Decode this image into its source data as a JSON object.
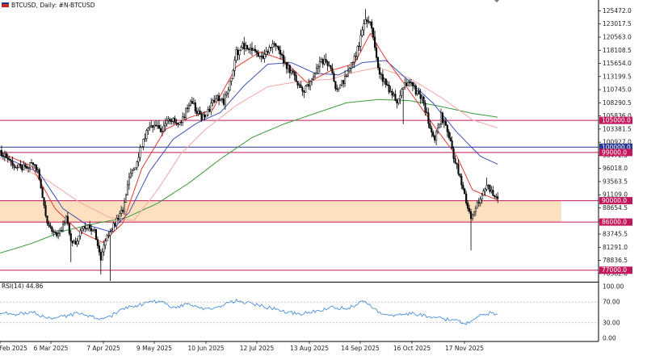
{
  "header": {
    "symbol_line": "BTCUSD, Daily:  #N-BTCUSD"
  },
  "rsi_panel": {
    "label": "RSI(14) 44.86"
  },
  "colors": {
    "bull_candle": "#000000",
    "bear_candle": "#000000",
    "ema_fast": "#e53935",
    "ema_mid": "#3f51b5",
    "ema_slow_pink": "#f4a6a6",
    "ema_long_green": "#3a9a3a",
    "level_line": "#c2185b",
    "key_level_line": "#283593",
    "zone_fill": "#fde0c0",
    "rsi_line": "#4a90d9"
  },
  "chart_data": {
    "type": "candlestick",
    "title": "BTCUSD, Daily:  #N-BTCUSD",
    "ylim": [
      75000,
      127500
    ],
    "price_axis_ticks": [
      "125472.0",
      "123017.5",
      "120563.0",
      "118108.5",
      "115654.0",
      "113199.5",
      "110745.0",
      "108290.5",
      "105836.0",
      "103381.5",
      "100927.0",
      "98472.5",
      "96018.0",
      "93563.5",
      "91109.0",
      "88654.5",
      "86200.0",
      "83745.5",
      "81291.0",
      "78836.5",
      "76382.0"
    ],
    "x_tick_labels": [
      "7 Feb 2025",
      "6 Mar 2025",
      "7 Apr 2025",
      "9 May 2025",
      "10 Jun 2025",
      "12 Jul 2025",
      "13 Aug 2025",
      "14 Sep 2025",
      "16 Oct 2025",
      "17 Nov 2025"
    ],
    "horizontal_levels": [
      {
        "label": "105000.0",
        "value": 105000
      },
      {
        "label": "100000.0",
        "value": 100000
      },
      {
        "label": "99000.0",
        "value": 99000
      },
      {
        "label": "90000.0",
        "value": 90000
      },
      {
        "label": "86000.0",
        "value": 86000
      },
      {
        "label": "77000.0",
        "value": 77000
      }
    ],
    "support_zone": {
      "from": 86000,
      "to": 90000
    },
    "close_anchors": [
      [
        0,
        99200
      ],
      [
        5,
        97800
      ],
      [
        10,
        96500
      ],
      [
        15,
        96200
      ],
      [
        20,
        97200
      ],
      [
        24,
        95800
      ],
      [
        27,
        91000
      ],
      [
        30,
        86000
      ],
      [
        33,
        84000
      ],
      [
        36,
        83500
      ],
      [
        39,
        84500
      ],
      [
        42,
        86700
      ],
      [
        45,
        82500
      ],
      [
        48,
        82200
      ],
      [
        52,
        84500
      ],
      [
        56,
        85200
      ],
      [
        60,
        84200
      ],
      [
        64,
        78800
      ],
      [
        67,
        82800
      ],
      [
        70,
        84200
      ],
      [
        74,
        86300
      ],
      [
        78,
        88200
      ],
      [
        82,
        94800
      ],
      [
        86,
        96300
      ],
      [
        90,
        100500
      ],
      [
        94,
        103500
      ],
      [
        98,
        104300
      ],
      [
        102,
        103200
      ],
      [
        106,
        104800
      ],
      [
        110,
        105500
      ],
      [
        114,
        104200
      ],
      [
        118,
        106800
      ],
      [
        122,
        108500
      ],
      [
        126,
        106200
      ],
      [
        130,
        105200
      ],
      [
        134,
        108000
      ],
      [
        138,
        109200
      ],
      [
        142,
        108600
      ],
      [
        146,
        112000
      ],
      [
        150,
        117500
      ],
      [
        154,
        119200
      ],
      [
        158,
        117800
      ],
      [
        162,
        118200
      ],
      [
        166,
        116800
      ],
      [
        170,
        118000
      ],
      [
        174,
        119800
      ],
      [
        178,
        117400
      ],
      [
        182,
        115200
      ],
      [
        186,
        113600
      ],
      [
        190,
        111200
      ],
      [
        194,
        110800
      ],
      [
        198,
        112500
      ],
      [
        202,
        115200
      ],
      [
        206,
        116300
      ],
      [
        210,
        114200
      ],
      [
        214,
        110200
      ],
      [
        218,
        112400
      ],
      [
        222,
        115400
      ],
      [
        226,
        117200
      ],
      [
        230,
        121300
      ],
      [
        232,
        124200
      ],
      [
        236,
        122200
      ],
      [
        240,
        114200
      ],
      [
        244,
        112300
      ],
      [
        248,
        110100
      ],
      [
        252,
        108500
      ],
      [
        256,
        111200
      ],
      [
        260,
        112500
      ],
      [
        264,
        110300
      ],
      [
        268,
        108800
      ],
      [
        272,
        104800
      ],
      [
        276,
        101800
      ],
      [
        280,
        105800
      ],
      [
        284,
        103300
      ],
      [
        288,
        98400
      ],
      [
        292,
        94200
      ],
      [
        296,
        89800
      ],
      [
        299,
        86900
      ],
      [
        302,
        88600
      ],
      [
        305,
        90800
      ],
      [
        309,
        92800
      ],
      [
        313,
        91200
      ],
      [
        316,
        90400
      ]
    ],
    "wick_spikes": [
      {
        "day": 45,
        "low": 78500
      },
      {
        "day": 64,
        "low": 76200
      },
      {
        "day": 70,
        "low": 74600
      },
      {
        "day": 232,
        "high": 125800
      },
      {
        "day": 256,
        "low": 104300
      },
      {
        "day": 299,
        "low": 80700
      },
      {
        "day": 309,
        "high": 94300
      }
    ],
    "ema_fast_anchors": [
      [
        0,
        99000
      ],
      [
        20,
        96500
      ],
      [
        35,
        88500
      ],
      [
        50,
        84300
      ],
      [
        65,
        82200
      ],
      [
        78,
        85800
      ],
      [
        90,
        96000
      ],
      [
        105,
        103300
      ],
      [
        120,
        105500
      ],
      [
        135,
        107000
      ],
      [
        150,
        115000
      ],
      [
        165,
        117800
      ],
      [
        180,
        116300
      ],
      [
        195,
        112000
      ],
      [
        210,
        114300
      ],
      [
        225,
        115600
      ],
      [
        235,
        121200
      ],
      [
        245,
        116500
      ],
      [
        260,
        110500
      ],
      [
        275,
        104200
      ],
      [
        290,
        98300
      ],
      [
        300,
        92000
      ],
      [
        316,
        90100
      ]
    ],
    "ema_mid_anchors": [
      [
        0,
        98500
      ],
      [
        25,
        95200
      ],
      [
        40,
        88500
      ],
      [
        55,
        85500
      ],
      [
        70,
        84200
      ],
      [
        82,
        87800
      ],
      [
        95,
        95500
      ],
      [
        110,
        101500
      ],
      [
        125,
        104500
      ],
      [
        140,
        106500
      ],
      [
        155,
        111500
      ],
      [
        170,
        115500
      ],
      [
        185,
        115800
      ],
      [
        200,
        113800
      ],
      [
        215,
        113500
      ],
      [
        230,
        115800
      ],
      [
        245,
        116200
      ],
      [
        260,
        112300
      ],
      [
        275,
        108200
      ],
      [
        290,
        102800
      ],
      [
        305,
        98300
      ],
      [
        316,
        96800
      ]
    ],
    "ema_slow_anchors": [
      [
        0,
        98000
      ],
      [
        30,
        93800
      ],
      [
        50,
        89800
      ],
      [
        70,
        86800
      ],
      [
        85,
        86300
      ],
      [
        100,
        92000
      ],
      [
        115,
        98800
      ],
      [
        130,
        103200
      ],
      [
        150,
        107800
      ],
      [
        170,
        111300
      ],
      [
        190,
        112300
      ],
      [
        210,
        112700
      ],
      [
        225,
        114000
      ],
      [
        240,
        114900
      ],
      [
        260,
        112900
      ],
      [
        280,
        109300
      ],
      [
        300,
        105100
      ],
      [
        316,
        103600
      ]
    ],
    "ema_long_anchors": [
      [
        0,
        80200
      ],
      [
        20,
        82000
      ],
      [
        40,
        84300
      ],
      [
        60,
        85700
      ],
      [
        80,
        86800
      ],
      [
        100,
        89500
      ],
      [
        120,
        93300
      ],
      [
        140,
        97800
      ],
      [
        160,
        101800
      ],
      [
        180,
        104300
      ],
      [
        200,
        106300
      ],
      [
        220,
        108300
      ],
      [
        240,
        108900
      ],
      [
        260,
        108700
      ],
      [
        280,
        107600
      ],
      [
        300,
        106300
      ],
      [
        316,
        105600
      ]
    ],
    "rsi": {
      "name": "RSI(14)",
      "current": 44.86,
      "ylim": [
        0,
        100
      ],
      "tick_labels": [
        "100.00",
        "70.00",
        "30.00",
        "0.00"
      ],
      "levels": [
        70,
        30
      ],
      "anchors": [
        [
          0,
          50
        ],
        [
          10,
          45
        ],
        [
          20,
          52
        ],
        [
          30,
          38
        ],
        [
          40,
          42
        ],
        [
          50,
          48
        ],
        [
          60,
          40
        ],
        [
          66,
          35
        ],
        [
          72,
          46
        ],
        [
          80,
          58
        ],
        [
          90,
          66
        ],
        [
          100,
          72
        ],
        [
          110,
          60
        ],
        [
          120,
          65
        ],
        [
          130,
          55
        ],
        [
          140,
          62
        ],
        [
          150,
          73
        ],
        [
          160,
          66
        ],
        [
          170,
          60
        ],
        [
          180,
          52
        ],
        [
          190,
          46
        ],
        [
          200,
          52
        ],
        [
          210,
          60
        ],
        [
          220,
          58
        ],
        [
          232,
          72
        ],
        [
          240,
          52
        ],
        [
          250,
          42
        ],
        [
          260,
          48
        ],
        [
          270,
          44
        ],
        [
          280,
          38
        ],
        [
          290,
          33
        ],
        [
          296,
          27
        ],
        [
          300,
          36
        ],
        [
          306,
          46
        ],
        [
          312,
          50
        ],
        [
          316,
          45
        ]
      ]
    }
  }
}
